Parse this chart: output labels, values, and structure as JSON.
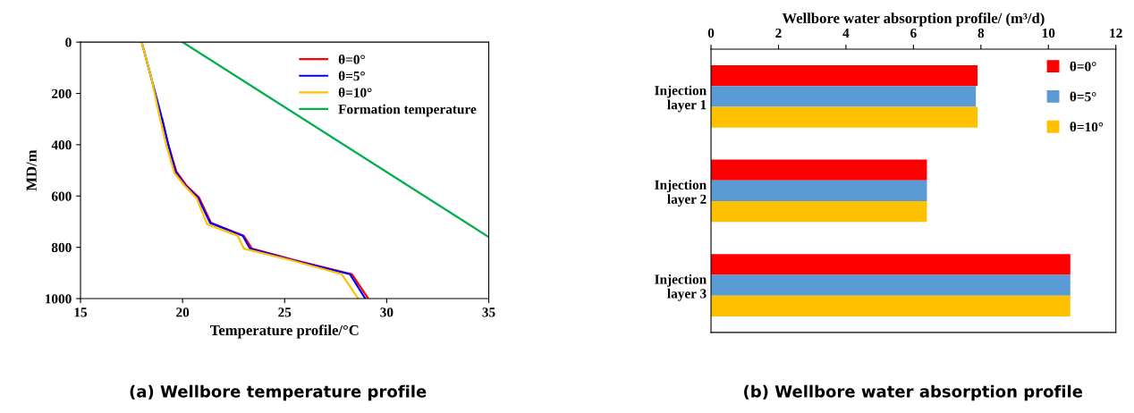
{
  "chart_data": [
    {
      "type": "line",
      "xlabel": "Temperature profile/°C",
      "ylabel": "MD/m",
      "xlim": [
        15,
        35
      ],
      "xticks": [
        15,
        20,
        25,
        30,
        35
      ],
      "ylim": [
        1000,
        0
      ],
      "yticks": [
        0,
        200,
        400,
        600,
        800,
        1000
      ],
      "grid": false,
      "legend": "top right",
      "marker": "none",
      "line_style": "solid",
      "annotations": [
        "(a) Wellbore temperature profile"
      ],
      "series": [
        {
          "name": "θ=0°",
          "color": "#ff0000",
          "x": [
            19.0,
            19.3,
            19.7,
            20.2,
            20.8,
            21.4,
            23.0,
            23.4,
            25.5,
            28.3,
            29.1
          ],
          "values": [
            300,
            400,
            505,
            560,
            605,
            705,
            755,
            805,
            850,
            905,
            1000
          ]
        },
        {
          "name": "θ=5°",
          "color": "#0000ff",
          "x": [
            18.0,
            18.5,
            19.0,
            19.3,
            19.65,
            20.15,
            20.75,
            21.35,
            22.95,
            23.3,
            25.4,
            28.2,
            28.95
          ],
          "values": [
            0,
            150,
            300,
            400,
            505,
            560,
            605,
            705,
            755,
            805,
            850,
            905,
            1000
          ]
        },
        {
          "name": "θ=10°",
          "color": "#ffc000",
          "x": [
            18.0,
            18.5,
            18.9,
            19.2,
            19.6,
            20.1,
            20.7,
            21.2,
            22.7,
            23.0,
            25.3,
            27.8,
            28.6
          ],
          "values": [
            0,
            150,
            300,
            400,
            510,
            560,
            610,
            710,
            755,
            805,
            850,
            905,
            1000
          ]
        },
        {
          "name": "Formation temperature",
          "color": "#00b050",
          "x": [
            20,
            35
          ],
          "values": [
            0,
            760
          ]
        }
      ]
    },
    {
      "type": "bar",
      "orientation": "horizontal",
      "xlabel": "Wellbore water absorption profile/ (m³/d)",
      "xlim": [
        0,
        12
      ],
      "xticks": [
        0,
        2,
        4,
        6,
        8,
        10,
        12
      ],
      "grid": false,
      "legend": "top right",
      "annotations": [
        "(b) Wellbore water absorption profile"
      ],
      "categories": [
        "Injection\nlayer 1",
        "Injection\nlayer 2",
        "Injection\nlayer 3"
      ],
      "series": [
        {
          "name": "θ=0°",
          "color": "#ff0000",
          "values": [
            7.9,
            6.4,
            10.65
          ]
        },
        {
          "name": "θ=5°",
          "color": "#5b9bd5",
          "values": [
            7.85,
            6.4,
            10.65
          ]
        },
        {
          "name": "θ=10°",
          "color": "#ffc000",
          "values": [
            7.9,
            6.4,
            10.65
          ]
        }
      ]
    }
  ]
}
